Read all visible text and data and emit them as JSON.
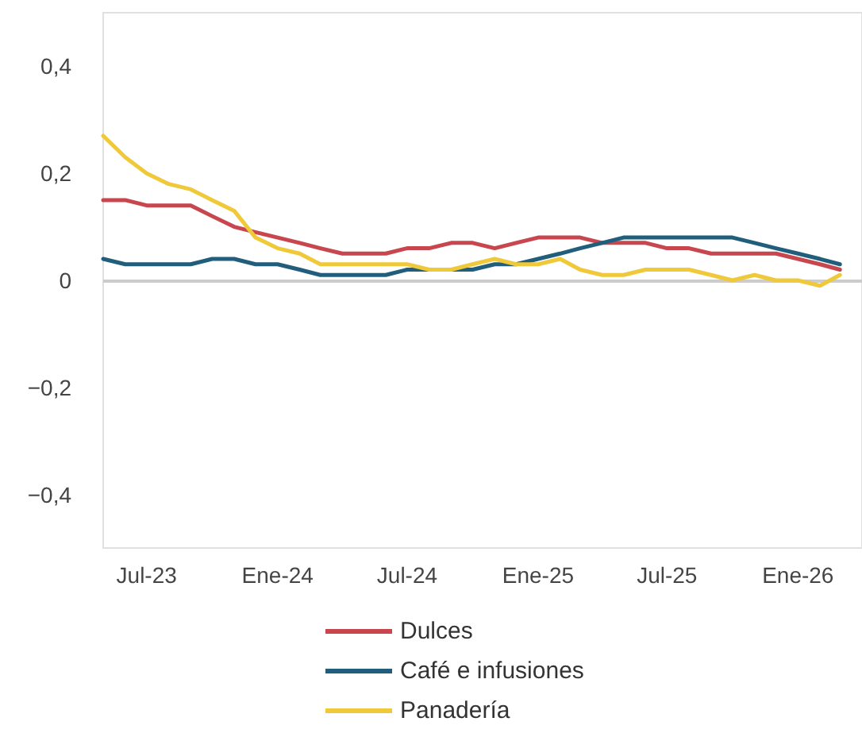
{
  "chart_data": {
    "type": "line",
    "x": [
      "2023-05",
      "2023-06",
      "2023-07",
      "2023-08",
      "2023-09",
      "2023-10",
      "2023-11",
      "2023-12",
      "2024-01",
      "2024-02",
      "2024-03",
      "2024-04",
      "2024-05",
      "2024-06",
      "2024-07",
      "2024-08",
      "2024-09",
      "2024-10",
      "2024-11",
      "2024-12",
      "2025-01",
      "2025-02",
      "2025-03",
      "2025-04",
      "2025-05",
      "2025-06",
      "2025-07",
      "2025-08",
      "2025-09",
      "2025-10",
      "2025-11",
      "2025-12",
      "2026-01",
      "2026-02",
      "2026-03"
    ],
    "series": [
      {
        "name": "Dulces",
        "color": "#c8474f",
        "values": [
          0.15,
          0.15,
          0.14,
          0.14,
          0.14,
          0.12,
          0.1,
          0.09,
          0.08,
          0.07,
          0.06,
          0.05,
          0.05,
          0.05,
          0.06,
          0.06,
          0.07,
          0.07,
          0.06,
          0.07,
          0.08,
          0.08,
          0.08,
          0.07,
          0.07,
          0.07,
          0.06,
          0.06,
          0.05,
          0.05,
          0.05,
          0.05,
          0.04,
          0.03,
          0.02
        ]
      },
      {
        "name": "Café e infusiones",
        "color": "#215e7c",
        "values": [
          0.04,
          0.03,
          0.03,
          0.03,
          0.03,
          0.04,
          0.04,
          0.03,
          0.03,
          0.02,
          0.01,
          0.01,
          0.01,
          0.01,
          0.02,
          0.02,
          0.02,
          0.02,
          0.03,
          0.03,
          0.04,
          0.05,
          0.06,
          0.07,
          0.08,
          0.08,
          0.08,
          0.08,
          0.08,
          0.08,
          0.07,
          0.06,
          0.05,
          0.04,
          0.03
        ]
      },
      {
        "name": "Panadería",
        "color": "#f0c93a",
        "values": [
          0.27,
          0.23,
          0.2,
          0.18,
          0.17,
          0.15,
          0.13,
          0.08,
          0.06,
          0.05,
          0.03,
          0.03,
          0.03,
          0.03,
          0.03,
          0.02,
          0.02,
          0.03,
          0.04,
          0.03,
          0.03,
          0.04,
          0.02,
          0.01,
          0.01,
          0.02,
          0.02,
          0.02,
          0.01,
          0.0,
          0.01,
          0.0,
          0.0,
          -0.01,
          0.01
        ]
      }
    ],
    "xlim": [
      "2023-05",
      "2026-04"
    ],
    "xticks": [
      {
        "value": "2023-07",
        "label": "Jul-23"
      },
      {
        "value": "2024-01",
        "label": "Ene-24"
      },
      {
        "value": "2024-07",
        "label": "Jul-24"
      },
      {
        "value": "2025-01",
        "label": "Ene-25"
      },
      {
        "value": "2025-07",
        "label": "Jul-25"
      },
      {
        "value": "2026-01",
        "label": "Ene-26"
      }
    ],
    "ylim": [
      -0.5,
      0.5
    ],
    "yticks": [
      {
        "value": -0.4,
        "label": "−0,4"
      },
      {
        "value": -0.2,
        "label": "−0,2"
      },
      0,
      {
        "value": 0.2,
        "label": "0,2"
      },
      {
        "value": 0.4,
        "label": "0,4"
      }
    ],
    "ref_lines": [
      {
        "axis": "y",
        "value": 0,
        "color": "#cccccc"
      }
    ],
    "grid": false,
    "legend": "bottom",
    "marker": "none",
    "line_style": "solid"
  }
}
